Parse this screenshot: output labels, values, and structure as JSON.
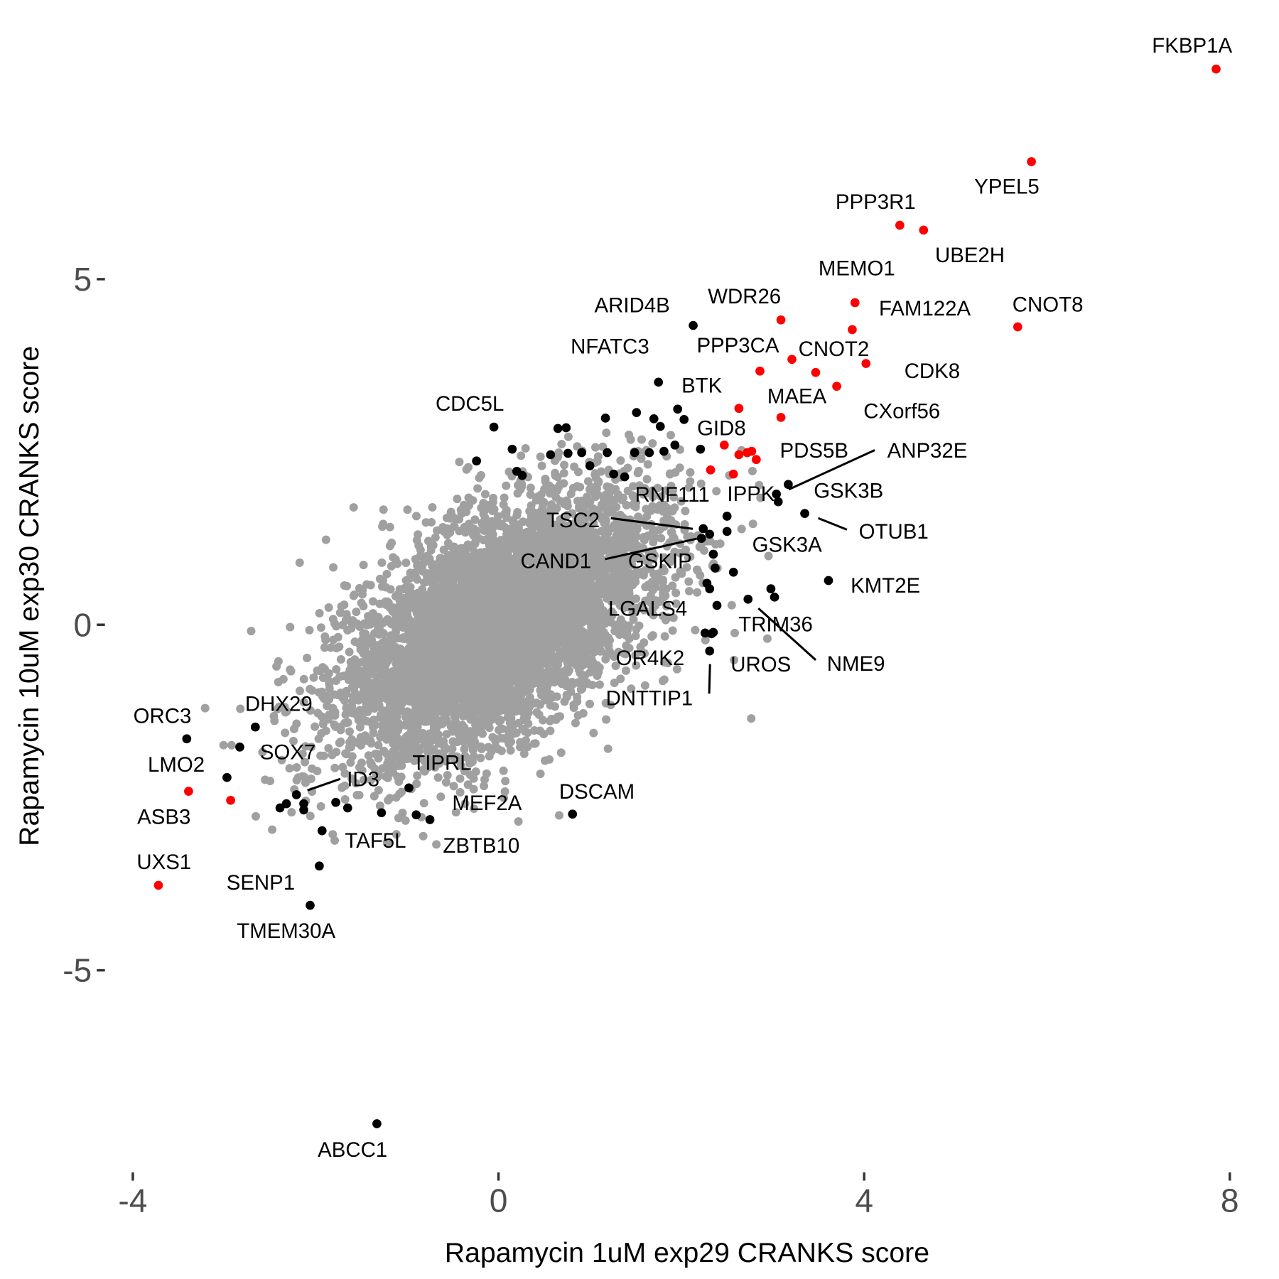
{
  "chart_data": {
    "type": "scatter",
    "title": "",
    "xlabel": "Rapamycin 1uM exp29 CRANKS score",
    "ylabel": "Rapamycin 10uM exp30 CRANKS score",
    "xlim": [
      -4.2,
      8.3
    ],
    "ylim": [
      -7.9,
      8.6
    ],
    "x_ticks": [
      -4,
      0,
      4,
      8
    ],
    "y_ticks": [
      -5,
      0,
      5
    ],
    "x_tick_labels": [
      "-4",
      "0",
      "4",
      "8"
    ],
    "y_tick_labels": [
      "-5",
      "0",
      "5"
    ],
    "grid": false,
    "colors": {
      "background_genes": "#a0a0a0",
      "hit_genes": "#000000",
      "highlight_genes": "#ff0000"
    },
    "background_cloud": {
      "color": "#a0a0a0",
      "center": [
        0,
        0
      ],
      "sd_x": 0.8,
      "sd_y": 0.9,
      "correlation": 0.55
    },
    "labeled_points": [
      {
        "label": "FKBP1A",
        "x": 7.85,
        "y": 8.04,
        "color": "#ff0000"
      },
      {
        "label": "YPEL5",
        "x": 5.83,
        "y": 6.7,
        "color": "#ff0000"
      },
      {
        "label": "PPP3R1",
        "x": 4.39,
        "y": 5.78,
        "color": "#ff0000"
      },
      {
        "label": "UBE2H",
        "x": 4.65,
        "y": 5.71,
        "color": "#ff0000"
      },
      {
        "label": "MEMO1",
        "x": 3.9,
        "y": 4.66,
        "color": "#ff0000"
      },
      {
        "label": "CNOT8",
        "x": 5.68,
        "y": 4.31,
        "color": "#ff0000"
      },
      {
        "label": "FAM122A",
        "x": 3.87,
        "y": 4.27,
        "color": "#ff0000"
      },
      {
        "label": "WDR26",
        "x": 3.09,
        "y": 4.41,
        "color": "#ff0000"
      },
      {
        "label": "CNOT2",
        "x": 3.21,
        "y": 3.84,
        "color": "#ff0000"
      },
      {
        "label": "PPP3CA",
        "x": 2.86,
        "y": 3.67,
        "color": "#ff0000"
      },
      {
        "label": "CDK8",
        "x": 4.02,
        "y": 3.78,
        "color": "#ff0000"
      },
      {
        "label": "MAEA",
        "x": 3.47,
        "y": 3.65,
        "color": "#ff0000"
      },
      {
        "label": "CXorf56",
        "x": 3.7,
        "y": 3.45,
        "color": "#ff0000"
      },
      {
        "label": "GID8",
        "x": 2.63,
        "y": 3.13,
        "color": "#ff0000"
      },
      {
        "label": "PDS5B",
        "x": 3.09,
        "y": 3.0,
        "color": "#ff0000"
      },
      {
        "label": "ARID4B",
        "x": 2.13,
        "y": 4.33,
        "color": "#000000"
      },
      {
        "label": "BTK",
        "x": 1.75,
        "y": 3.51,
        "color": "#000000"
      },
      {
        "label": "NFATC3",
        "x": 1.96,
        "y": 3.12,
        "color": "#000000"
      },
      {
        "label": "CDC5L",
        "x": -0.05,
        "y": 2.86,
        "color": "#000000"
      },
      {
        "label": "RNF111",
        "x": 2.21,
        "y": 2.54,
        "color": "#000000"
      },
      {
        "label": "IPPK",
        "x": 3.04,
        "y": 1.89,
        "color": "#000000"
      },
      {
        "label": "ANP32E",
        "x": 3.17,
        "y": 2.03,
        "color": "#000000"
      },
      {
        "label": "GSK3B",
        "x": 3.06,
        "y": 1.78,
        "color": "#000000"
      },
      {
        "label": "OTUB1",
        "x": 3.35,
        "y": 1.61,
        "color": "#000000"
      },
      {
        "label": "TSC2",
        "x": 2.24,
        "y": 1.39,
        "color": "#000000"
      },
      {
        "label": "CAND1",
        "x": 2.31,
        "y": 1.31,
        "color": "#000000"
      },
      {
        "label": "GSKIP",
        "x": 2.35,
        "y": 1.02,
        "color": "#000000"
      },
      {
        "label": "GSK3A",
        "x": 2.5,
        "y": 1.57,
        "color": "#000000"
      },
      {
        "label": "KMT2E",
        "x": 3.61,
        "y": 0.64,
        "color": "#000000"
      },
      {
        "label": "LGALS4",
        "x": 2.39,
        "y": 0.28,
        "color": "#000000"
      },
      {
        "label": "TRIM36",
        "x": 3.02,
        "y": 0.4,
        "color": "#000000"
      },
      {
        "label": "NME9",
        "x": 2.73,
        "y": 0.37,
        "color": "#000000"
      },
      {
        "label": "UROS",
        "x": 2.26,
        "y": -0.12,
        "color": "#000000"
      },
      {
        "label": "OR4K2",
        "x": 2.35,
        "y": -0.11,
        "color": "#000000"
      },
      {
        "label": "DNTTIP1",
        "x": 2.31,
        "y": -0.38,
        "color": "#000000"
      },
      {
        "label": "ORC3",
        "x": -3.41,
        "y": -1.65,
        "color": "#000000"
      },
      {
        "label": "DHX29",
        "x": -2.66,
        "y": -1.48,
        "color": "#000000"
      },
      {
        "label": "SOX7",
        "x": -2.83,
        "y": -1.77,
        "color": "#000000"
      },
      {
        "label": "LMO2",
        "x": -3.39,
        "y": -2.41,
        "color": "#ff0000"
      },
      {
        "label": "ASB3",
        "x": -2.93,
        "y": -2.54,
        "color": "#ff0000"
      },
      {
        "label": "ID3",
        "x": -2.21,
        "y": -2.46,
        "color": "#000000"
      },
      {
        "label": "TIPRL",
        "x": -0.98,
        "y": -2.36,
        "color": "#000000"
      },
      {
        "label": "MEF2A",
        "x": -0.9,
        "y": -2.75,
        "color": "#000000"
      },
      {
        "label": "ZBTB10",
        "x": -0.75,
        "y": -2.82,
        "color": "#000000"
      },
      {
        "label": "DSCAM",
        "x": 0.81,
        "y": -2.74,
        "color": "#000000"
      },
      {
        "label": "TAF5L",
        "x": -1.93,
        "y": -2.98,
        "color": "#000000"
      },
      {
        "label": "UXS1",
        "x": -3.72,
        "y": -3.77,
        "color": "#ff0000"
      },
      {
        "label": "SENP1",
        "x": -1.96,
        "y": -3.49,
        "color": "#000000"
      },
      {
        "label": "TMEM30A",
        "x": -2.06,
        "y": -4.06,
        "color": "#000000"
      },
      {
        "label": "ABCC1",
        "x": -1.33,
        "y": -7.22,
        "color": "#000000"
      }
    ],
    "unlabeled_points": [
      {
        "x": 2.47,
        "y": 2.6,
        "color": "#ff0000"
      },
      {
        "x": 2.63,
        "y": 2.46,
        "color": "#ff0000"
      },
      {
        "x": 2.72,
        "y": 2.49,
        "color": "#ff0000"
      },
      {
        "x": 2.77,
        "y": 2.51,
        "color": "#ff0000"
      },
      {
        "x": 2.82,
        "y": 2.39,
        "color": "#ff0000"
      },
      {
        "x": 2.32,
        "y": 2.24,
        "color": "#ff0000"
      },
      {
        "x": 2.57,
        "y": 2.18,
        "color": "#ff0000"
      },
      {
        "x": -0.24,
        "y": 2.37,
        "color": "#000000"
      },
      {
        "x": 0.15,
        "y": 2.54,
        "color": "#000000"
      },
      {
        "x": 0.2,
        "y": 2.22,
        "color": "#000000"
      },
      {
        "x": 0.26,
        "y": 2.16,
        "color": "#000000"
      },
      {
        "x": 0.65,
        "y": 2.84,
        "color": "#000000"
      },
      {
        "x": 0.74,
        "y": 2.85,
        "color": "#000000"
      },
      {
        "x": 0.57,
        "y": 2.46,
        "color": "#000000"
      },
      {
        "x": 0.76,
        "y": 2.48,
        "color": "#000000"
      },
      {
        "x": 0.91,
        "y": 2.49,
        "color": "#000000"
      },
      {
        "x": 1.0,
        "y": 2.3,
        "color": "#000000"
      },
      {
        "x": 1.17,
        "y": 2.99,
        "color": "#000000"
      },
      {
        "x": 1.19,
        "y": 2.49,
        "color": "#000000"
      },
      {
        "x": 1.26,
        "y": 2.18,
        "color": "#000000"
      },
      {
        "x": 1.38,
        "y": 2.14,
        "color": "#000000"
      },
      {
        "x": 1.51,
        "y": 3.07,
        "color": "#000000"
      },
      {
        "x": 1.49,
        "y": 2.49,
        "color": "#000000"
      },
      {
        "x": 1.65,
        "y": 2.49,
        "color": "#000000"
      },
      {
        "x": 1.7,
        "y": 2.98,
        "color": "#000000"
      },
      {
        "x": 1.77,
        "y": 2.87,
        "color": "#000000"
      },
      {
        "x": 1.81,
        "y": 2.51,
        "color": "#000000"
      },
      {
        "x": 1.93,
        "y": 2.6,
        "color": "#000000"
      },
      {
        "x": 2.03,
        "y": 2.97,
        "color": "#000000"
      },
      {
        "x": 2.5,
        "y": 1.35,
        "color": "#000000"
      },
      {
        "x": 2.37,
        "y": 0.82,
        "color": "#000000"
      },
      {
        "x": 2.28,
        "y": 0.6,
        "color": "#000000"
      },
      {
        "x": 2.31,
        "y": 0.52,
        "color": "#000000"
      },
      {
        "x": 2.57,
        "y": 0.76,
        "color": "#000000"
      },
      {
        "x": 2.98,
        "y": 0.52,
        "color": "#000000"
      },
      {
        "x": 2.22,
        "y": 1.25,
        "color": "#000000"
      },
      {
        "x": 2.33,
        "y": -0.13,
        "color": "#000000"
      },
      {
        "x": -2.97,
        "y": -2.21,
        "color": "#000000"
      },
      {
        "x": -2.39,
        "y": -2.65,
        "color": "#000000"
      },
      {
        "x": -2.32,
        "y": -2.59,
        "color": "#000000"
      },
      {
        "x": -2.13,
        "y": -2.59,
        "color": "#000000"
      },
      {
        "x": -2.13,
        "y": -2.68,
        "color": "#000000"
      },
      {
        "x": -1.78,
        "y": -2.57,
        "color": "#000000"
      },
      {
        "x": -1.65,
        "y": -2.65,
        "color": "#000000"
      },
      {
        "x": -1.28,
        "y": -2.72,
        "color": "#000000"
      }
    ]
  }
}
